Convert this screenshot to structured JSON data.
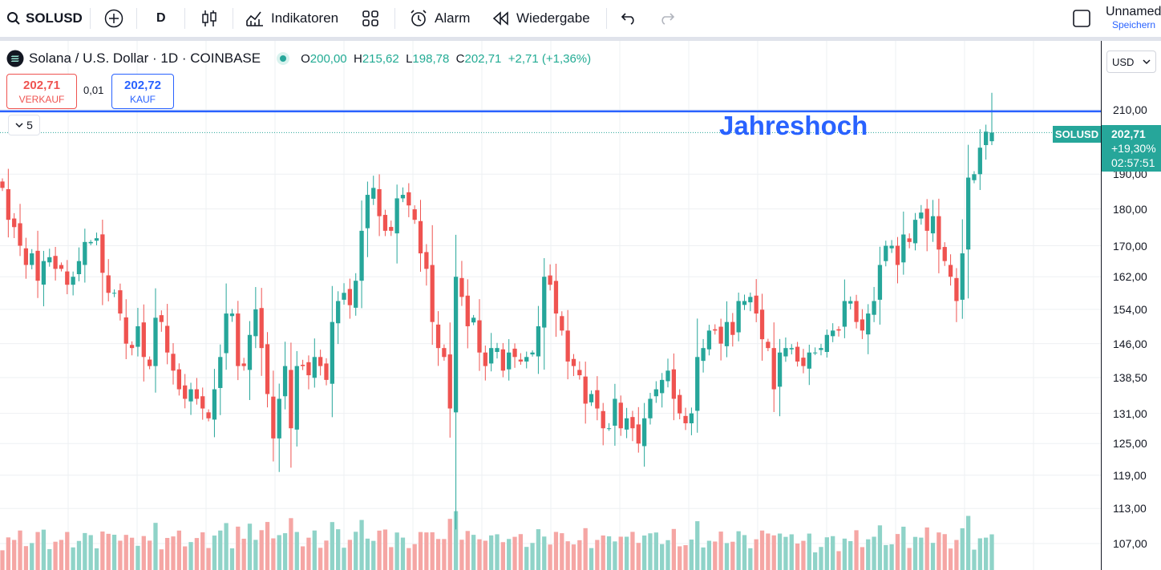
{
  "toolbar": {
    "symbol": "SOLUSD",
    "interval": "D",
    "indicators_label": "Indikatoren",
    "alarm_label": "Alarm",
    "replay_label": "Wiedergabe",
    "layout_name": "Unnamed",
    "save_label": "Speichern"
  },
  "legend": {
    "title": "Solana / U.S. Dollar · 1D · COINBASE",
    "open_label": "O",
    "open": "200,00",
    "high_label": "H",
    "high": "215,62",
    "low_label": "L",
    "low": "198,78",
    "close_label": "C",
    "close": "202,71",
    "change": "+2,71 (+1,36%)"
  },
  "trade": {
    "sell_price": "202,71",
    "sell_label": "VERKAUF",
    "spread": "0,01",
    "buy_price": "202,72",
    "buy_label": "KAUF"
  },
  "collapse_count": "5",
  "annotation": "Jahreshoch",
  "currency": "USD",
  "last_price": {
    "symbol_tag": "SOLUSD",
    "price": "202,71",
    "change_pct": "+19,30%",
    "countdown": "02:57:51"
  },
  "colors": {
    "up": "#26a69a",
    "down": "#ef5350",
    "up_volume": "#8fd3c8",
    "down_volume": "#f5a6a4",
    "annotation_line": "#2962ff",
    "grid": "#eef0f3"
  },
  "chart_data": {
    "type": "candlestick",
    "y_scale": "log",
    "y_ticks": [
      "210,00",
      "190,00",
      "180,00",
      "170,00",
      "162,00",
      "154,00",
      "146,00",
      "138,50",
      "131,00",
      "125,00",
      "119,00",
      "113,00",
      "107,00"
    ],
    "horizontal_line": {
      "value": 209.5,
      "label": "Jahreshoch"
    },
    "last_close": 202.71,
    "closes": [
      186,
      177,
      175,
      170,
      165,
      168,
      161,
      166,
      167,
      164,
      164,
      160,
      162,
      166,
      171,
      171,
      172,
      163,
      158,
      158,
      153,
      146,
      145,
      150,
      143,
      141,
      152,
      151,
      144,
      140,
      136,
      134,
      136,
      134,
      132,
      130,
      136,
      143,
      153,
      153,
      141,
      141,
      148,
      154,
      145,
      135,
      126,
      134,
      141,
      128,
      141,
      141,
      139,
      143,
      141,
      138,
      151,
      156,
      158,
      155,
      161,
      174,
      184,
      186,
      178,
      174,
      174,
      183,
      184,
      181,
      177,
      168,
      164,
      151,
      145,
      143,
      132,
      162,
      157,
      150,
      152,
      144,
      141,
      145,
      145,
      140,
      144,
      143,
      142,
      143,
      144,
      150,
      162,
      160,
      153,
      149,
      142,
      141,
      139,
      133,
      135,
      132,
      128,
      128,
      134,
      128,
      130,
      128,
      125,
      130,
      134,
      136,
      138,
      140,
      134,
      131,
      129,
      131,
      143,
      145,
      149,
      149,
      146,
      151,
      148,
      156,
      156,
      157,
      153,
      147,
      145,
      136,
      144,
      145,
      145,
      142,
      141,
      144,
      144,
      145,
      148,
      149,
      149,
      156,
      156,
      151,
      149,
      153,
      156,
      165,
      170,
      170,
      165,
      173,
      171,
      177,
      179,
      174,
      178,
      169,
      166,
      162,
      156,
      168,
      189,
      190,
      198,
      203,
      203
    ]
  }
}
